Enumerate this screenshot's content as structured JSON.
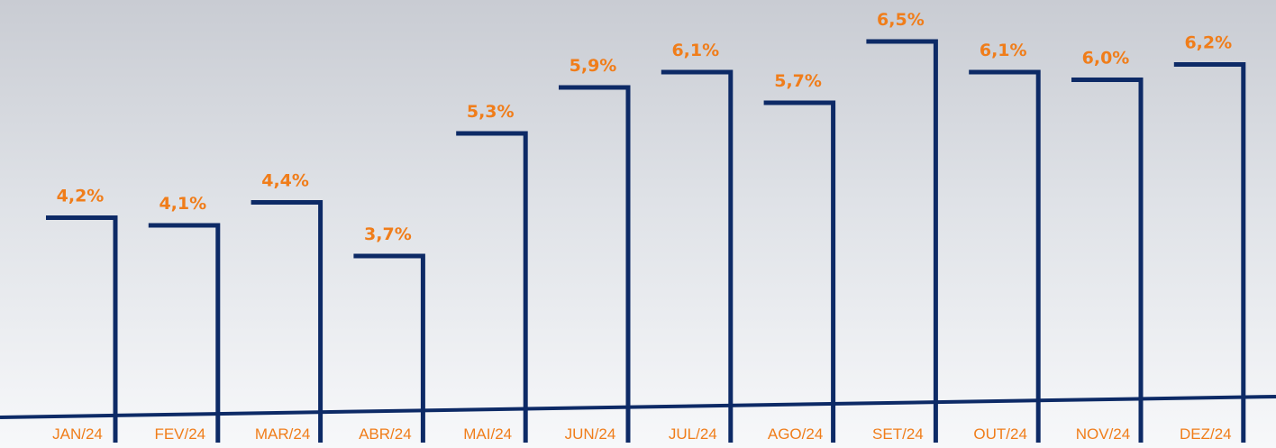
{
  "chart_data": {
    "type": "bar",
    "categories": [
      "JAN/24",
      "FEV/24",
      "MAR/24",
      "ABR/24",
      "MAI/24",
      "JUN/24",
      "JUL/24",
      "AGO/24",
      "SET/24",
      "OUT/24",
      "NOV/24",
      "DEZ/24"
    ],
    "values": [
      4.2,
      4.1,
      4.4,
      3.7,
      5.3,
      5.9,
      6.1,
      5.7,
      6.5,
      6.1,
      6.0,
      6.2
    ],
    "value_labels": [
      "4,2%",
      "4,1%",
      "4,4%",
      "3,7%",
      "5,3%",
      "5,9%",
      "6,1%",
      "5,7%",
      "6,5%",
      "6,1%",
      "6,0%",
      "6,2%"
    ],
    "color": "#0d2a66"
  }
}
